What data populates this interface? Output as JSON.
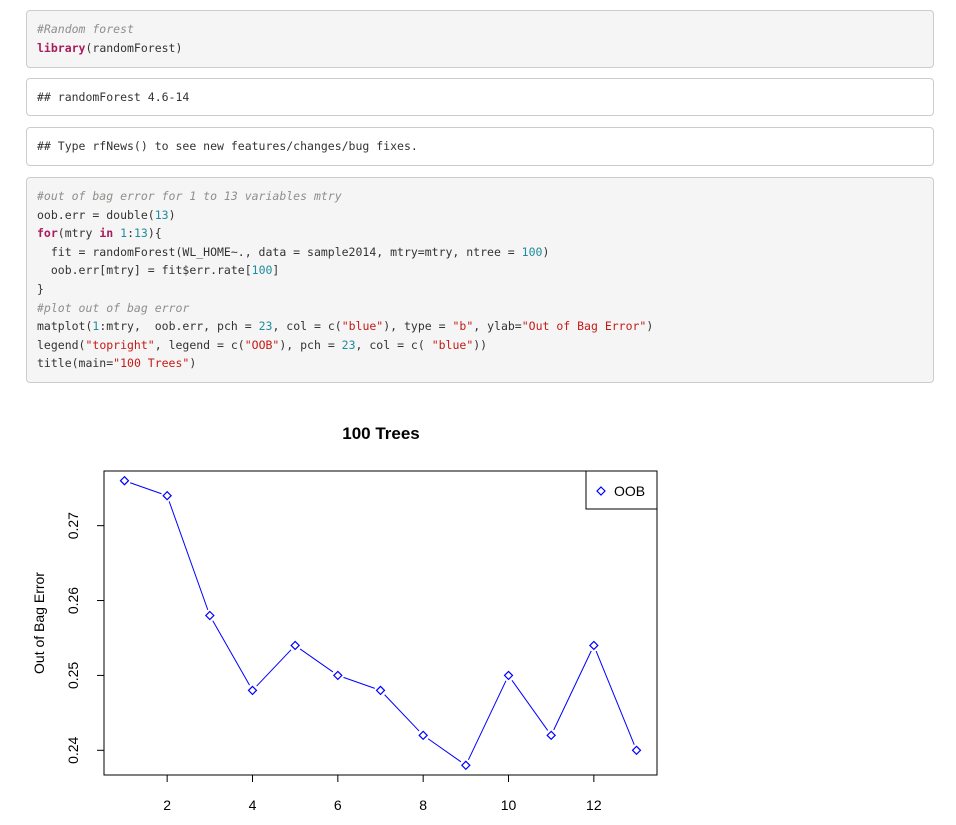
{
  "code_blocks": [
    {
      "kind": "source",
      "lines": [
        [
          {
            "t": "#Random forest",
            "c": "cm"
          }
        ],
        [
          {
            "t": "library",
            "c": "kwb"
          },
          {
            "t": "(randomForest)",
            "c": ""
          }
        ]
      ]
    },
    {
      "kind": "output",
      "lines": [
        [
          {
            "t": "## randomForest 4.6-14",
            "c": ""
          }
        ]
      ]
    },
    {
      "kind": "output",
      "lines": [
        [
          {
            "t": "## Type rfNews() to see new features/changes/bug fixes.",
            "c": ""
          }
        ]
      ]
    },
    {
      "kind": "source",
      "lines": [
        [
          {
            "t": "#out of bag error for 1 to 13 variables mtry",
            "c": "cm"
          }
        ],
        [
          {
            "t": "oob.err = double(",
            "c": ""
          },
          {
            "t": "13",
            "c": "num"
          },
          {
            "t": ")",
            "c": ""
          }
        ],
        [
          {
            "t": "for",
            "c": "kwb"
          },
          {
            "t": "(mtry ",
            "c": ""
          },
          {
            "t": "in",
            "c": "kwb"
          },
          {
            "t": " ",
            "c": ""
          },
          {
            "t": "1",
            "c": "num"
          },
          {
            "t": ":",
            "c": ""
          },
          {
            "t": "13",
            "c": "num"
          },
          {
            "t": "){",
            "c": ""
          }
        ],
        [
          {
            "t": "  fit = randomForest(WL_HOME~., data = sample2014, mtry=mtry, ntree = ",
            "c": ""
          },
          {
            "t": "100",
            "c": "num"
          },
          {
            "t": ")",
            "c": ""
          }
        ],
        [
          {
            "t": "  oob.err[mtry] = fit$err.rate[",
            "c": ""
          },
          {
            "t": "100",
            "c": "num"
          },
          {
            "t": "]",
            "c": ""
          }
        ],
        [
          {
            "t": "}",
            "c": ""
          }
        ],
        [
          {
            "t": "#plot out of bag error",
            "c": "cm"
          }
        ],
        [
          {
            "t": "matplot(",
            "c": ""
          },
          {
            "t": "1",
            "c": "num"
          },
          {
            "t": ":mtry,  oob.err, pch = ",
            "c": ""
          },
          {
            "t": "23",
            "c": "num"
          },
          {
            "t": ", col = c(",
            "c": ""
          },
          {
            "t": "\"blue\"",
            "c": "str"
          },
          {
            "t": "), type = ",
            "c": ""
          },
          {
            "t": "\"b\"",
            "c": "str"
          },
          {
            "t": ", ylab=",
            "c": ""
          },
          {
            "t": "\"Out of Bag Error\"",
            "c": "str"
          },
          {
            "t": ")",
            "c": ""
          }
        ],
        [
          {
            "t": "legend(",
            "c": ""
          },
          {
            "t": "\"topright\"",
            "c": "str"
          },
          {
            "t": ", legend = c(",
            "c": ""
          },
          {
            "t": "\"OOB\"",
            "c": "str"
          },
          {
            "t": "), pch = ",
            "c": ""
          },
          {
            "t": "23",
            "c": "num"
          },
          {
            "t": ", col = c( ",
            "c": ""
          },
          {
            "t": "\"blue\"",
            "c": "str"
          },
          {
            "t": "))",
            "c": ""
          }
        ],
        [
          {
            "t": "title(main=",
            "c": ""
          },
          {
            "t": "\"100 Trees\"",
            "c": "str"
          },
          {
            "t": ")",
            "c": ""
          }
        ]
      ]
    }
  ],
  "chart_data": {
    "type": "line",
    "title": "100 Trees",
    "xlabel": "",
    "ylabel": "Out of Bag Error",
    "x": [
      1,
      2,
      3,
      4,
      5,
      6,
      7,
      8,
      9,
      10,
      11,
      12,
      13
    ],
    "series": [
      {
        "name": "OOB",
        "color": "#0000ff",
        "marker": "diamond",
        "values": [
          0.276,
          0.274,
          0.258,
          0.248,
          0.254,
          0.25,
          0.248,
          0.242,
          0.238,
          0.25,
          0.242,
          0.254,
          0.24
        ]
      }
    ],
    "xticks": [
      2,
      4,
      6,
      8,
      10,
      12
    ],
    "yticks": [
      0.24,
      0.25,
      0.26,
      0.27
    ],
    "ytick_labels": [
      "0.24",
      "0.25",
      "0.26",
      "0.27"
    ],
    "xlim": [
      0.52,
      13.48
    ],
    "ylim": [
      0.2367,
      0.2773
    ],
    "grid": false,
    "legend": {
      "position": "top-right",
      "entries": [
        "OOB"
      ]
    }
  }
}
